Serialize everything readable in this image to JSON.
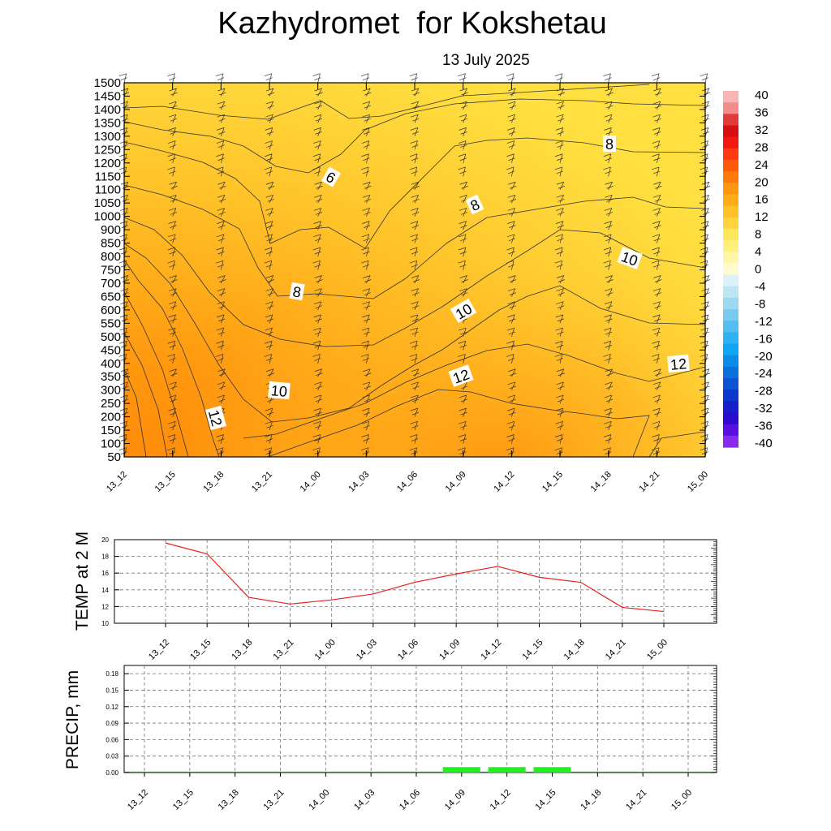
{
  "header": {
    "title": "Kazhydromet  for Kokshetau",
    "subtitle": "13 July 2025"
  },
  "chart_data": [
    {
      "type": "heatmap",
      "description_kind": "time-height cross section with contour lines and wind barbs",
      "x_categories": [
        "13_12",
        "13_15",
        "13_18",
        "13_21",
        "14_00",
        "14_03",
        "14_06",
        "14_09",
        "14_12",
        "14_15",
        "14_18",
        "14_21",
        "15_00"
      ],
      "y_levels": [
        50,
        100,
        150,
        200,
        250,
        300,
        350,
        400,
        450,
        500,
        550,
        600,
        650,
        700,
        750,
        800,
        850,
        900,
        1000,
        1050,
        1100,
        1150,
        1200,
        1250,
        1300,
        1350,
        1400,
        1450,
        1500
      ],
      "ylim": [
        50,
        1500
      ],
      "colorbar": {
        "labels": [
          40,
          36,
          32,
          28,
          24,
          20,
          16,
          12,
          8,
          4,
          0,
          -4,
          -8,
          -12,
          -16,
          -20,
          -24,
          -28,
          -32,
          -36,
          -40
        ],
        "colors_high_to_low": [
          "#f9b4b4",
          "#f38c8c",
          "#e03a3a",
          "#d61010",
          "#f21810",
          "#ff3a10",
          "#ff5a0a",
          "#ff7a0a",
          "#ff9610",
          "#ffac18",
          "#ffc02a",
          "#ffd43e",
          "#ffe65a",
          "#fff07a",
          "#fff6a8",
          "#fffad2",
          "#dcf2fa",
          "#bce6f6",
          "#9cd8f2",
          "#78cbf0",
          "#54bef2",
          "#2eb2f4",
          "#10a4f4",
          "#0a8ce8",
          "#0a70dc",
          "#0a54d4",
          "#0a38cc",
          "#1420c8",
          "#2c0ad0",
          "#5a10e0",
          "#8a2aec"
        ]
      },
      "contour_labels": [
        "6",
        "8",
        "8",
        "8",
        "10",
        "10",
        "10",
        "12",
        "12",
        "12"
      ]
    },
    {
      "type": "line",
      "ylabel": "TEMP at 2 M",
      "categories": [
        "13_12",
        "13_15",
        "13_18",
        "13_21",
        "14_00",
        "14_03",
        "14_06",
        "14_09",
        "14_12",
        "14_15",
        "14_18",
        "14_21",
        "15_00"
      ],
      "values": [
        19.6,
        18.3,
        13.1,
        12.3,
        12.8,
        13.5,
        14.9,
        15.9,
        16.8,
        15.5,
        14.9,
        11.9,
        11.4
      ],
      "yticks": [
        10,
        12,
        14,
        16,
        18,
        20
      ],
      "ylim": [
        10,
        20
      ],
      "grid": true,
      "series_color": "#e82020"
    },
    {
      "type": "bar",
      "ylabel": "PRECIP, mm",
      "categories": [
        "13_12",
        "13_15",
        "13_18",
        "13_21",
        "14_00",
        "14_03",
        "14_06",
        "14_09",
        "14_12",
        "14_15",
        "14_18",
        "14_21",
        "15_00"
      ],
      "values": [
        0,
        0,
        0,
        0,
        0,
        0,
        0,
        0.01,
        0.01,
        0.01,
        0,
        0,
        0
      ],
      "ytick_labels": [
        "0.00",
        "0.03",
        "0.06",
        "0.09",
        "0.12",
        "0.15",
        "0.18"
      ],
      "ylim": [
        0,
        0.195
      ],
      "grid": true,
      "bar_color": "#22ee22"
    }
  ]
}
